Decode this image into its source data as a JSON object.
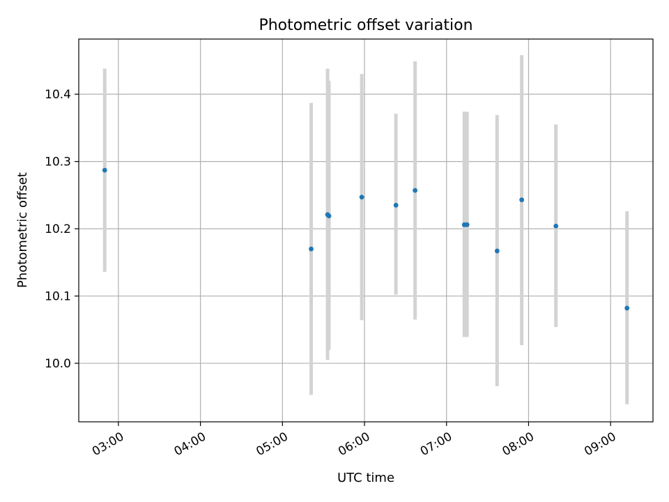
{
  "chart_data": {
    "type": "scatter",
    "title": "Photometric offset variation",
    "xlabel": "UTC time",
    "ylabel": "Photometric offset",
    "x_ticks": [
      "03:00",
      "04:00",
      "05:00",
      "06:00",
      "07:00",
      "08:00",
      "09:00"
    ],
    "y_ticks": [
      "10.0",
      "10.1",
      "10.2",
      "10.3",
      "10.4"
    ],
    "xlim": [
      "02:31",
      "09:31"
    ],
    "ylim": [
      9.913,
      10.482
    ],
    "grid": true,
    "legend": "none",
    "colors": {
      "point": "#1f77b4",
      "errorbar": "#d3d3d3",
      "grid": "#b0b0b0"
    },
    "points": [
      {
        "x": "02:50",
        "y": 10.287,
        "y_low": 10.136,
        "y_high": 10.438
      },
      {
        "x": "05:21",
        "y": 10.17,
        "y_low": 9.953,
        "y_high": 10.387
      },
      {
        "x": "05:33",
        "y": 10.221,
        "y_low": 10.005,
        "y_high": 10.438
      },
      {
        "x": "05:34",
        "y": 10.219,
        "y_low": 10.02,
        "y_high": 10.42
      },
      {
        "x": "05:58",
        "y": 10.247,
        "y_low": 10.064,
        "y_high": 10.43
      },
      {
        "x": "06:23",
        "y": 10.235,
        "y_low": 10.102,
        "y_high": 10.371
      },
      {
        "x": "06:37",
        "y": 10.257,
        "y_low": 10.065,
        "y_high": 10.449
      },
      {
        "x": "07:13",
        "y": 10.206,
        "y_low": 10.039,
        "y_high": 10.374
      },
      {
        "x": "07:15",
        "y": 10.206,
        "y_low": 10.039,
        "y_high": 10.374
      },
      {
        "x": "07:37",
        "y": 10.167,
        "y_low": 9.966,
        "y_high": 10.369
      },
      {
        "x": "07:55",
        "y": 10.243,
        "y_low": 10.027,
        "y_high": 10.458
      },
      {
        "x": "08:20",
        "y": 10.204,
        "y_low": 10.054,
        "y_high": 10.355
      },
      {
        "x": "09:12",
        "y": 10.082,
        "y_low": 9.939,
        "y_high": 10.226
      }
    ]
  }
}
